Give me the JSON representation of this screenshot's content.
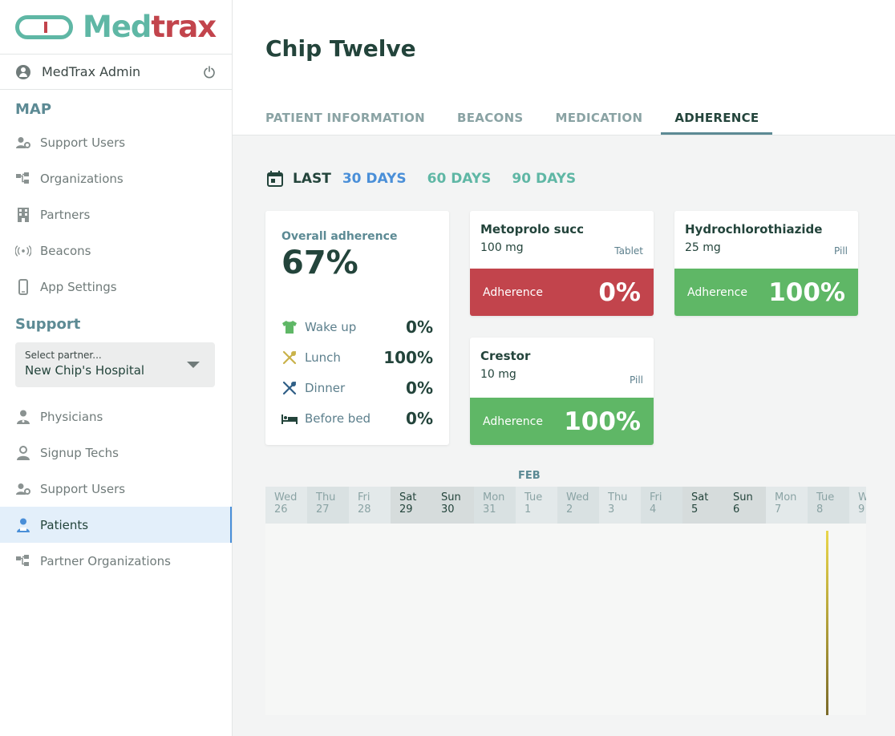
{
  "brand": {
    "part1": "Med",
    "part2": "trax"
  },
  "user": {
    "name": "MedTrax Admin"
  },
  "map_section": {
    "title": "MAP",
    "items": [
      {
        "label": "Support Users",
        "icon": "users-gear-icon"
      },
      {
        "label": "Organizations",
        "icon": "org-tree-icon"
      },
      {
        "label": "Partners",
        "icon": "building-icon"
      },
      {
        "label": "Beacons",
        "icon": "beacon-icon"
      },
      {
        "label": "App Settings",
        "icon": "phone-icon"
      }
    ]
  },
  "support_section": {
    "title": "Support",
    "partner_select": {
      "label": "Select partner...",
      "value": "New Chip's Hospital"
    },
    "items": [
      {
        "label": "Physicians",
        "icon": "physician-icon"
      },
      {
        "label": "Signup Techs",
        "icon": "tech-icon"
      },
      {
        "label": "Support Users",
        "icon": "users-gear-icon"
      },
      {
        "label": "Patients",
        "icon": "patient-icon",
        "active": true
      },
      {
        "label": "Partner Organizations",
        "icon": "org-tree-icon"
      }
    ]
  },
  "patient": {
    "name": "Chip Twelve"
  },
  "tabs": [
    "PATIENT INFORMATION",
    "BEACONS",
    "MEDICATION",
    "ADHERENCE"
  ],
  "range": {
    "last_label": "LAST",
    "options": [
      "30 DAYS",
      "60 DAYS",
      "90 DAYS"
    ],
    "selected": "30 DAYS"
  },
  "overall": {
    "label": "Overall adherence",
    "value": "67%",
    "slots": [
      {
        "name": "Wake up",
        "value": "0%",
        "icon": "shirt-icon"
      },
      {
        "name": "Lunch",
        "value": "100%",
        "icon": "utensils-icon"
      },
      {
        "name": "Dinner",
        "value": "0%",
        "icon": "utensils-icon"
      },
      {
        "name": "Before bed",
        "value": "0%",
        "icon": "bed-icon"
      }
    ]
  },
  "medications": [
    {
      "name": "Metoprolo succ",
      "dose": "100 mg",
      "form": "Tablet",
      "bar_label": "Adherence",
      "adherence": "0%",
      "status_color": "#c2444c"
    },
    {
      "name": "Hydrochlorothiazide",
      "dose": "25 mg",
      "form": "Pill",
      "bar_label": "Adherence",
      "adherence": "100%",
      "status_color": "#5fb766"
    },
    {
      "name": "Crestor",
      "dose": "10 mg",
      "form": "Pill",
      "bar_label": "Adherence",
      "adherence": "100%",
      "status_color": "#5fb766"
    }
  ],
  "timeline": {
    "month": "FEB",
    "days": [
      {
        "dow": "Wed",
        "date": "26"
      },
      {
        "dow": "Thu",
        "date": "27"
      },
      {
        "dow": "Fri",
        "date": "28"
      },
      {
        "dow": "Sat",
        "date": "29"
      },
      {
        "dow": "Sun",
        "date": "30"
      },
      {
        "dow": "Mon",
        "date": "31"
      },
      {
        "dow": "Tue",
        "date": "1"
      },
      {
        "dow": "Wed",
        "date": "2"
      },
      {
        "dow": "Thu",
        "date": "3"
      },
      {
        "dow": "Fri",
        "date": "4"
      },
      {
        "dow": "Sat",
        "date": "5"
      },
      {
        "dow": "Sun",
        "date": "6"
      },
      {
        "dow": "Mon",
        "date": "7"
      },
      {
        "dow": "Tue",
        "date": "8"
      },
      {
        "dow": "W",
        "date": "9"
      }
    ]
  },
  "colors": {
    "accent_teal": "#5fb7a5",
    "accent_red": "#c2444c",
    "accent_blue": "#4a8fd8",
    "adherent_green": "#5fb766"
  }
}
